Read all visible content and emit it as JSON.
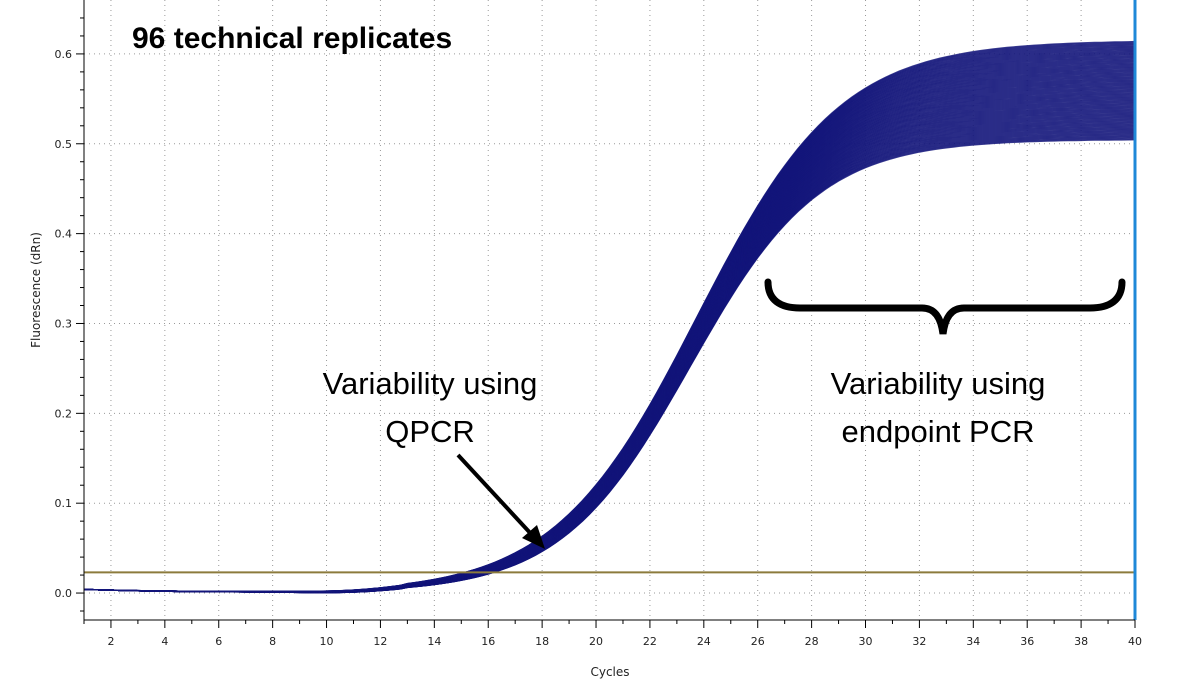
{
  "chart_data": {
    "type": "line",
    "title": "96 technical replicates",
    "xlabel": "Cycles",
    "ylabel": "Fluorescence (dRn)",
    "xlim": [
      1,
      40
    ],
    "ylim": [
      -0.03,
      0.66
    ],
    "x_ticks": [
      2,
      4,
      6,
      8,
      10,
      12,
      14,
      16,
      18,
      20,
      22,
      24,
      26,
      28,
      30,
      32,
      34,
      36,
      38,
      40
    ],
    "y_ticks": [
      0.0,
      0.1,
      0.2,
      0.3,
      0.4,
      0.5,
      0.6
    ],
    "grid": true,
    "threshold": 0.023,
    "series_count": 96,
    "series_color": "#13157a",
    "threshold_color": "#8c7b3c",
    "marker_line_x": 40,
    "marker_line_color": "#1f88d8",
    "curve_model": {
      "baseline": 0.0,
      "midpoint_cycle": 23.5,
      "slope_cycles": 2.5,
      "plateau_min": 0.505,
      "plateau_max": 0.615
    },
    "annotations": {
      "qpcr_line1": "Variability using",
      "qpcr_line2": "QPCR",
      "endpoint_line1": "Variability using",
      "endpoint_line2": "endpoint PCR"
    }
  }
}
